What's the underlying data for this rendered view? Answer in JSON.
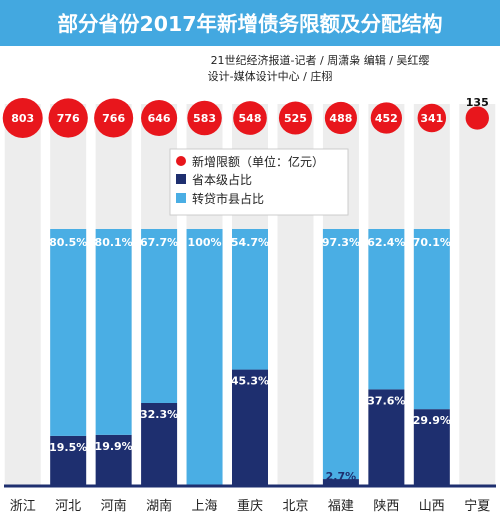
{
  "header": {
    "title": "部分省份2017年新增债务限额及分配结构",
    "credit_line1": "21世纪经济报道-记者 / 周潇枭    编辑 / 吴红缨",
    "credit_line2": "设计-媒体设计中心 / 庄栩"
  },
  "colors": {
    "title_bar": "#43a8e0",
    "bubble": "#e8161c",
    "provincial": "#1e2f6f",
    "transfer": "#4aaee4",
    "column_bg": "#ededed",
    "axis": "#1e2f6f"
  },
  "chart_data": {
    "type": "bar",
    "stacked": true,
    "percent_stacked": true,
    "categories": [
      "浙江",
      "河北",
      "河南",
      "湖南",
      "上海",
      "重庆",
      "北京",
      "福建",
      "陕西",
      "山西",
      "宁夏"
    ],
    "new_limit": [
      803,
      776,
      766,
      646,
      583,
      548,
      525,
      488,
      452,
      341,
      135
    ],
    "series": [
      {
        "name": "省本级占比",
        "values": [
          null,
          19.5,
          19.9,
          32.3,
          0,
          45.3,
          null,
          2.7,
          37.6,
          29.9,
          null
        ],
        "labels": [
          "",
          "19.5%",
          "19.9%",
          "32.3%",
          "",
          "45.3%",
          "",
          "2.7%",
          "37.6%",
          "29.9%",
          ""
        ]
      },
      {
        "name": "转贷市县占比",
        "values": [
          null,
          80.5,
          80.1,
          67.7,
          100,
          54.7,
          null,
          97.3,
          62.4,
          70.1,
          null
        ],
        "labels": [
          "",
          "80.5%",
          "80.1%",
          "67.7%",
          "100%",
          "54.7%",
          "",
          "97.3%",
          "62.4%",
          "70.1%",
          ""
        ]
      }
    ],
    "legend": {
      "placement": "top-center",
      "items": [
        "新增限额（单位：亿元）",
        "省本级占比",
        "转贷市县占比"
      ]
    },
    "ylim": [
      0,
      100
    ],
    "grid": false
  }
}
